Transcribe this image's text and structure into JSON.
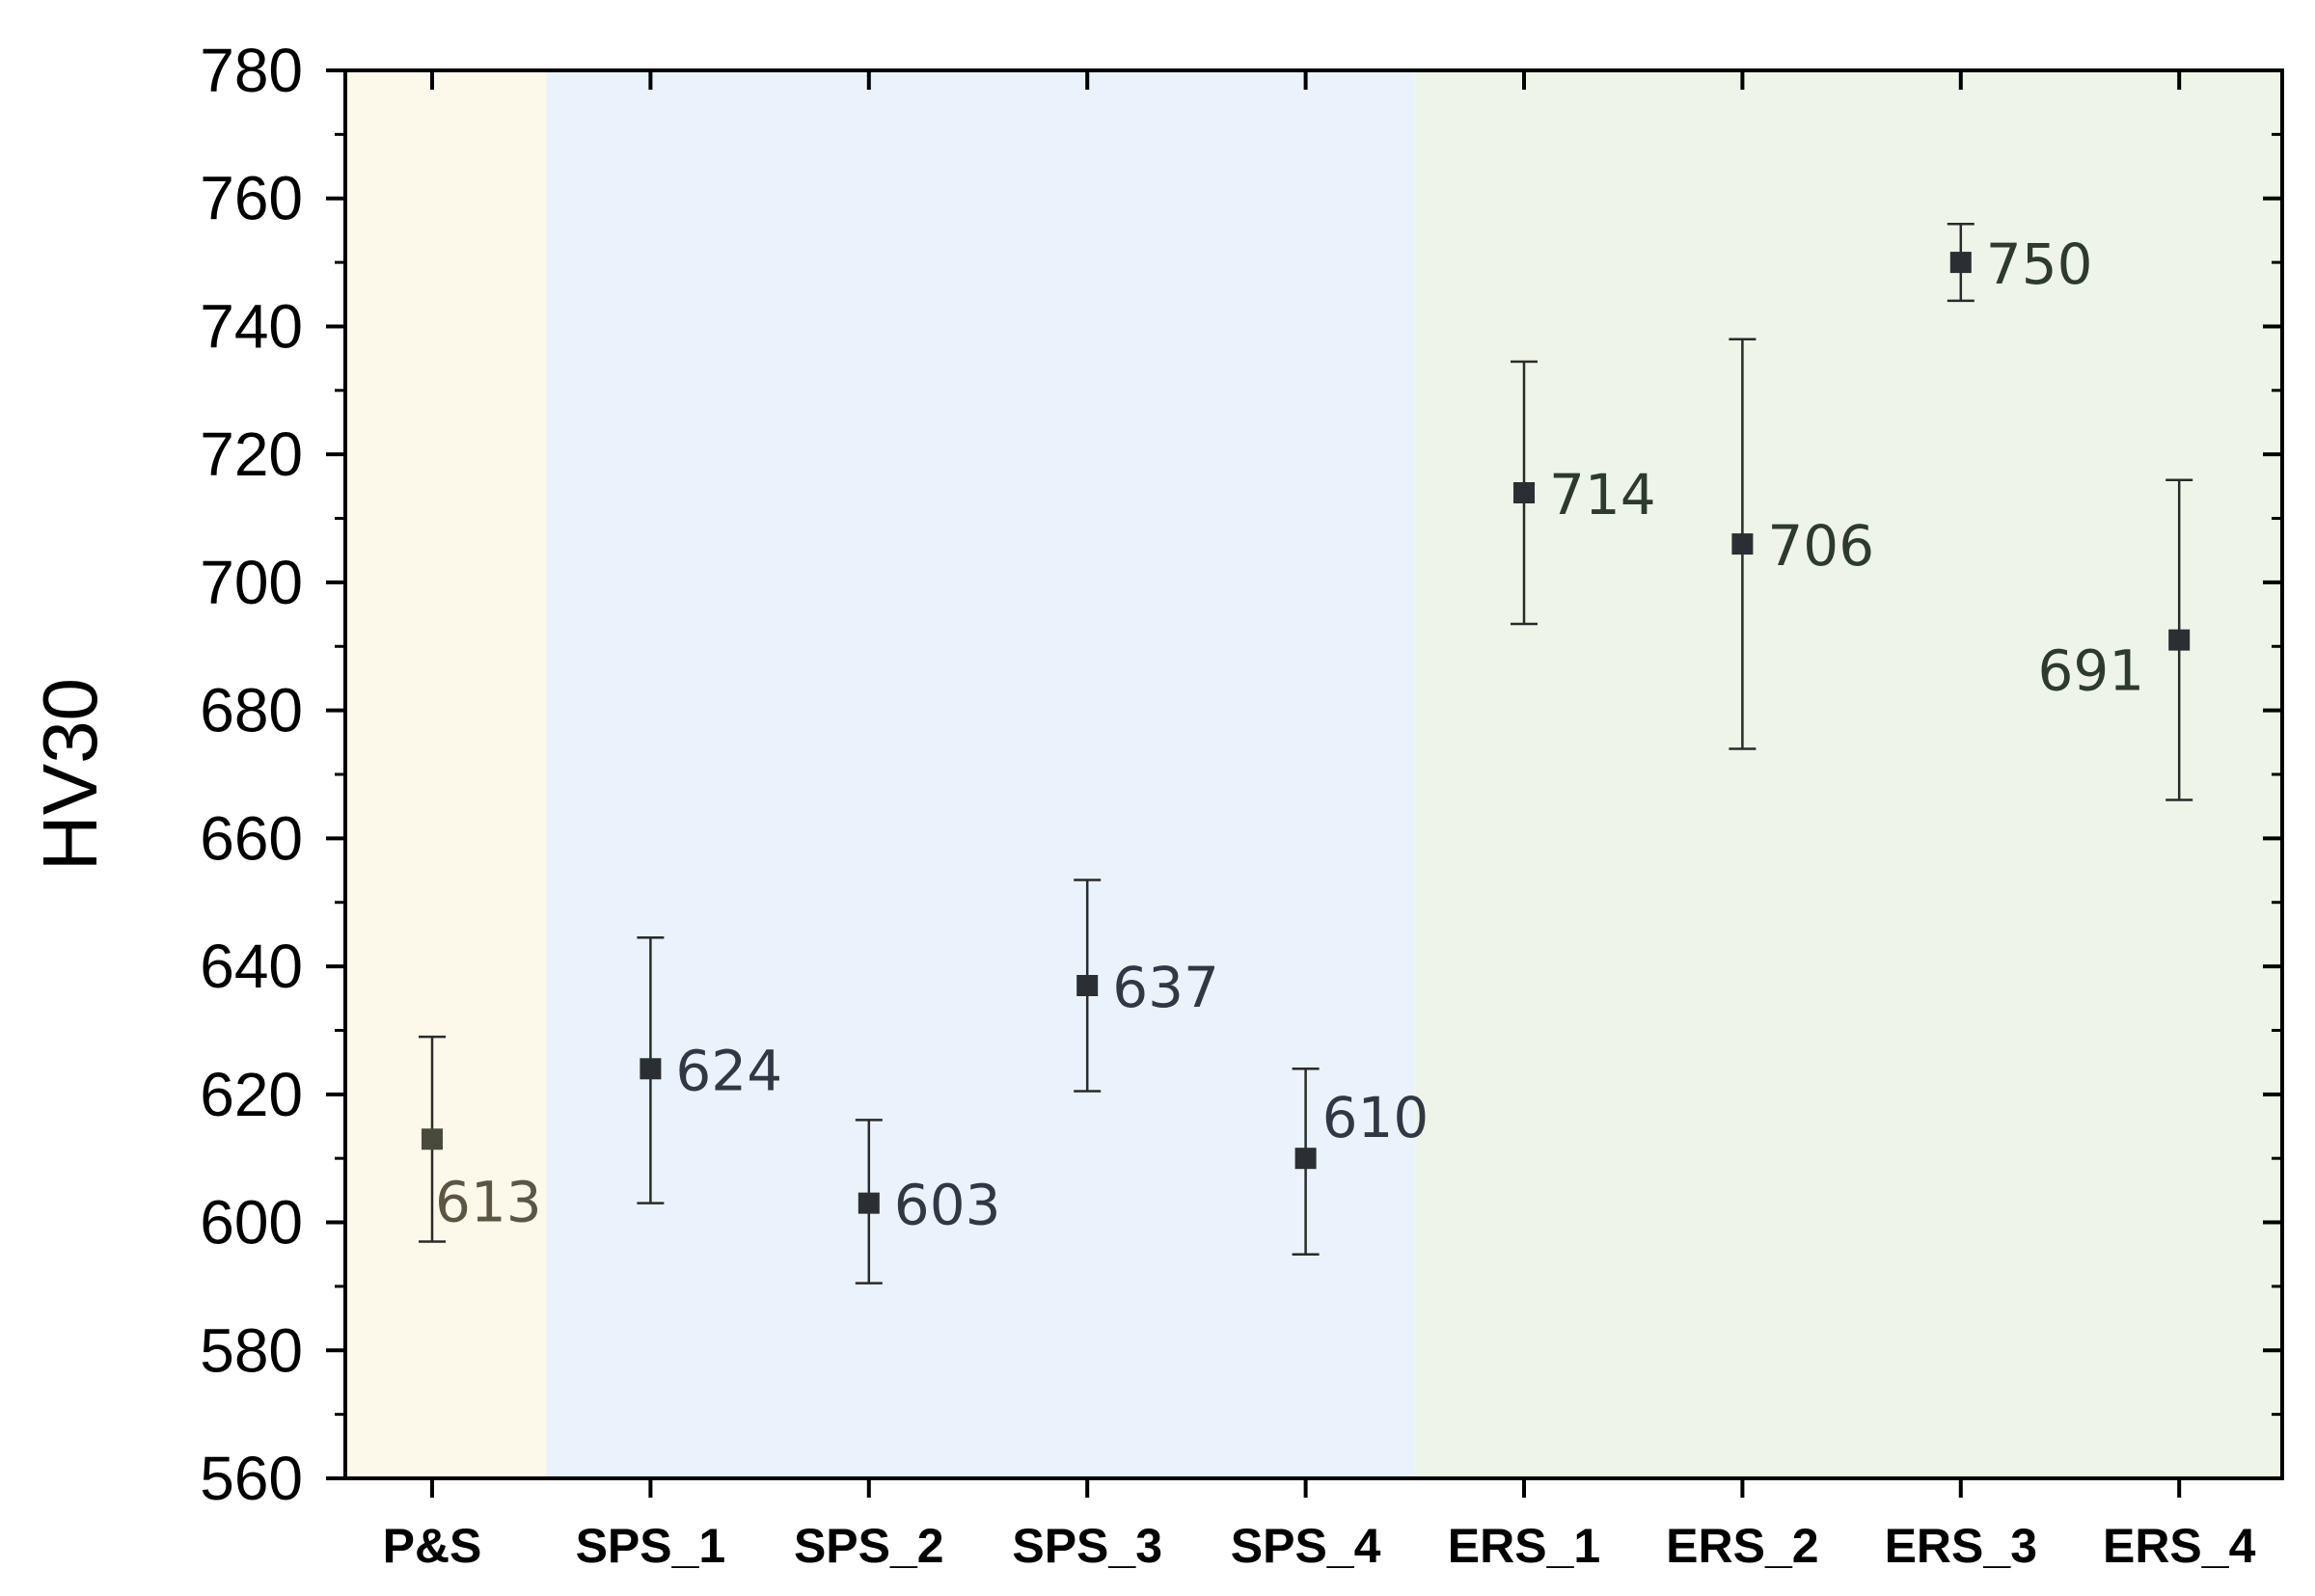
{
  "chart_data": {
    "type": "scatter",
    "ylabel": "HV30",
    "xlabel": "",
    "ylim": [
      560,
      780
    ],
    "yticks": [
      560,
      580,
      600,
      620,
      640,
      660,
      680,
      700,
      720,
      740,
      760,
      780
    ],
    "categories": [
      "P&S",
      "SPS_1",
      "SPS_2",
      "SPS_3",
      "SPS_4",
      "ERS_1",
      "ERS_2",
      "ERS_3",
      "ERS_4"
    ],
    "values": [
      613,
      624,
      603,
      637,
      610,
      714,
      706,
      750,
      691
    ],
    "error_low": [
      597,
      603,
      590.5,
      620.5,
      595,
      693.5,
      674,
      744,
      666
    ],
    "error_high": [
      629,
      644.5,
      616,
      653.5,
      624,
      734.5,
      738,
      756,
      716
    ],
    "labels": [
      "613",
      "624",
      "603",
      "637",
      "610",
      "714",
      "706",
      "750",
      "691"
    ],
    "label_side": [
      "right-below",
      "right",
      "right",
      "right",
      "right-above",
      "right",
      "right",
      "right",
      "left-below"
    ],
    "regions": [
      {
        "from": "P&S",
        "to": "P&S",
        "color": "#fdf9ea"
      },
      {
        "from": "SPS_1",
        "to": "SPS_4",
        "color": "#eaf3fb"
      },
      {
        "from": "ERS_1",
        "to": "ERS_4",
        "color": "#eef5e8"
      }
    ],
    "label_colors": [
      "#5b5544",
      "#313845",
      "#313845",
      "#313845",
      "#313845",
      "#2e3a2e",
      "#2e3a2e",
      "#2e3a2e",
      "#2e3a2e"
    ],
    "marker_color": "#2b2f33",
    "grid": false,
    "legend": "none"
  }
}
